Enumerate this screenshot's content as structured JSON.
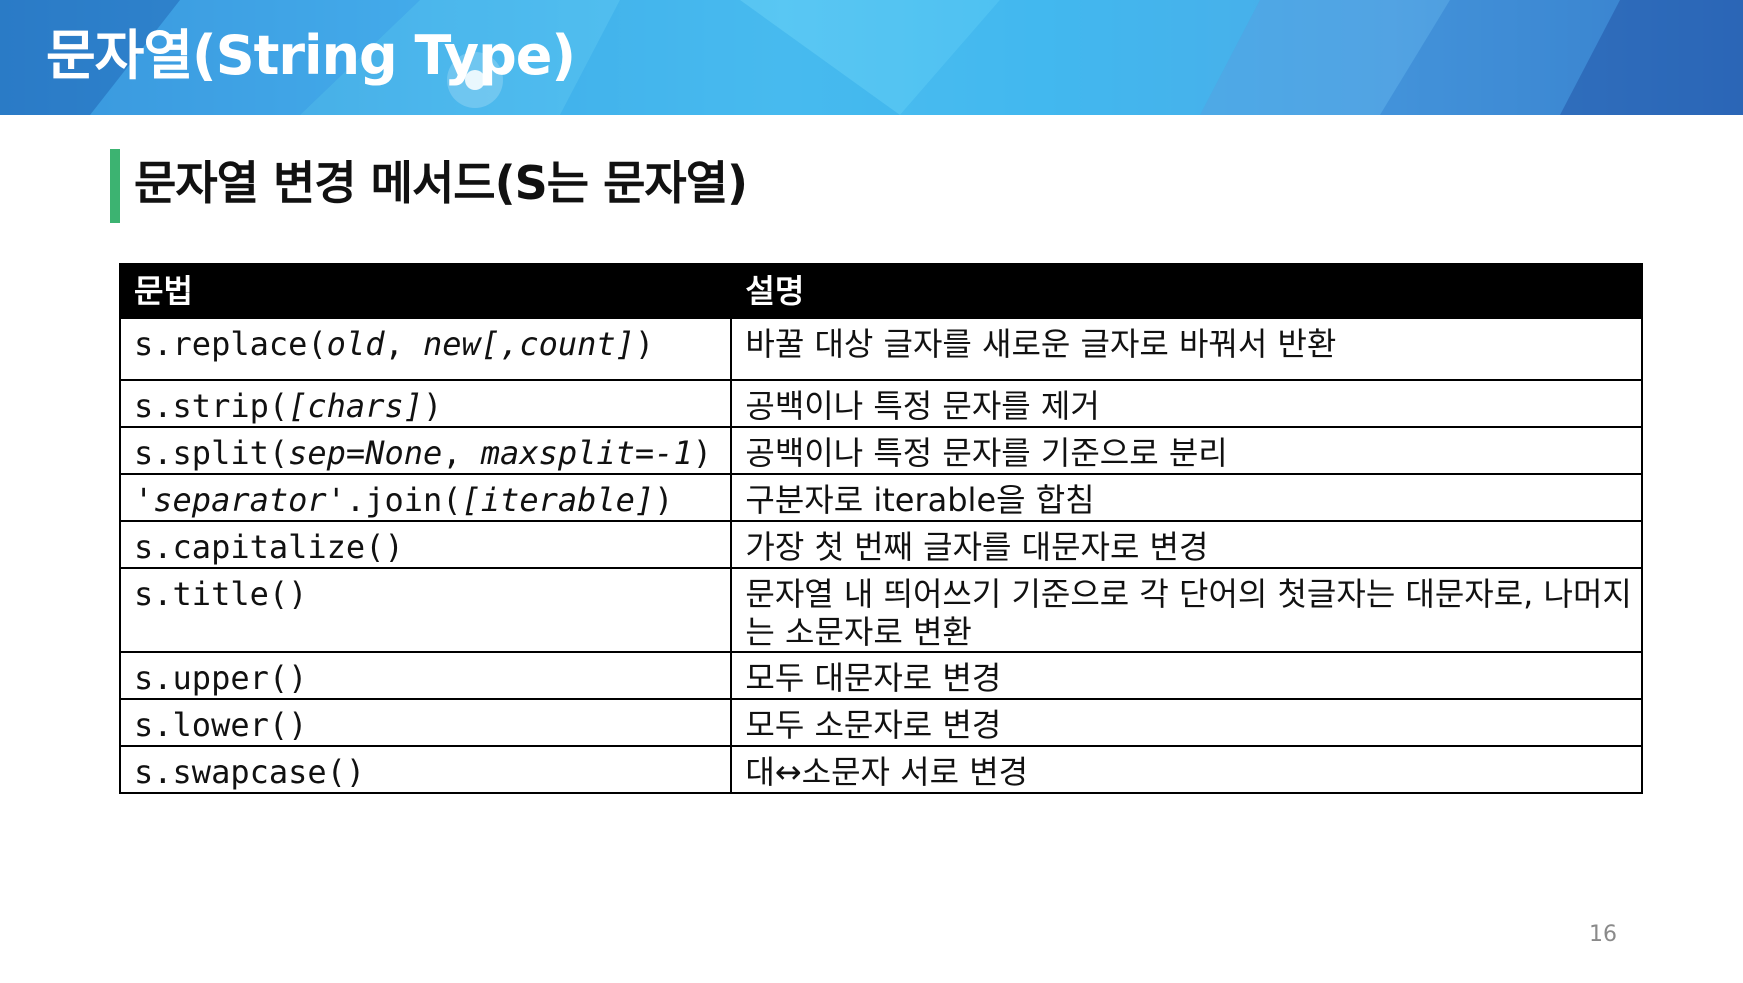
{
  "banner": {
    "title": "문자열(String Type)"
  },
  "section": {
    "title": "문자열 변경 메서드(S는 문자열)",
    "accent_color": "#3cb371"
  },
  "table": {
    "headers": [
      "문법",
      "설명"
    ],
    "rows": [
      {
        "syntax": [
          {
            "text": "s.replace(",
            "italic": false
          },
          {
            "text": "old",
            "italic": true
          },
          {
            "text": ", ",
            "italic": false
          },
          {
            "text": "new[,count]",
            "italic": true
          },
          {
            "text": ")",
            "italic": false
          }
        ],
        "description": "바꿀 대상 글자를 새로운 글자로 바꿔서 반환"
      },
      {
        "syntax": [
          {
            "text": "s.strip(",
            "italic": false
          },
          {
            "text": "[chars]",
            "italic": true
          },
          {
            "text": ")",
            "italic": false
          }
        ],
        "description": "공백이나 특정 문자를 제거"
      },
      {
        "syntax": [
          {
            "text": "s.split(",
            "italic": false
          },
          {
            "text": "sep=None",
            "italic": true
          },
          {
            "text": ", ",
            "italic": false
          },
          {
            "text": "maxsplit=-1",
            "italic": true
          },
          {
            "text": ")",
            "italic": false
          }
        ],
        "description": "공백이나 특정 문자를 기준으로 분리"
      },
      {
        "syntax": [
          {
            "text": "'",
            "italic": false
          },
          {
            "text": "separator",
            "italic": true
          },
          {
            "text": "'.join(",
            "italic": false
          },
          {
            "text": "[iterable]",
            "italic": true
          },
          {
            "text": ")",
            "italic": false
          }
        ],
        "description": "구분자로 iterable을 합침"
      },
      {
        "syntax": [
          {
            "text": "s.capitalize()",
            "italic": false
          }
        ],
        "description": "가장 첫 번째 글자를 대문자로 변경"
      },
      {
        "syntax": [
          {
            "text": "s.title()",
            "italic": false
          }
        ],
        "description": "문자열 내 띄어쓰기 기준으로 각 단어의 첫글자는 대문자로, 나머지는 소문자로 변환"
      },
      {
        "syntax": [
          {
            "text": "s.upper()",
            "italic": false
          }
        ],
        "description": "모두 대문자로 변경"
      },
      {
        "syntax": [
          {
            "text": "s.lower()",
            "italic": false
          }
        ],
        "description": "모두 소문자로 변경"
      },
      {
        "syntax": [
          {
            "text": "s.swapcase()",
            "italic": false
          }
        ],
        "description": "대↔소문자 서로 변경"
      }
    ]
  },
  "footer": {
    "page_number": "16"
  }
}
